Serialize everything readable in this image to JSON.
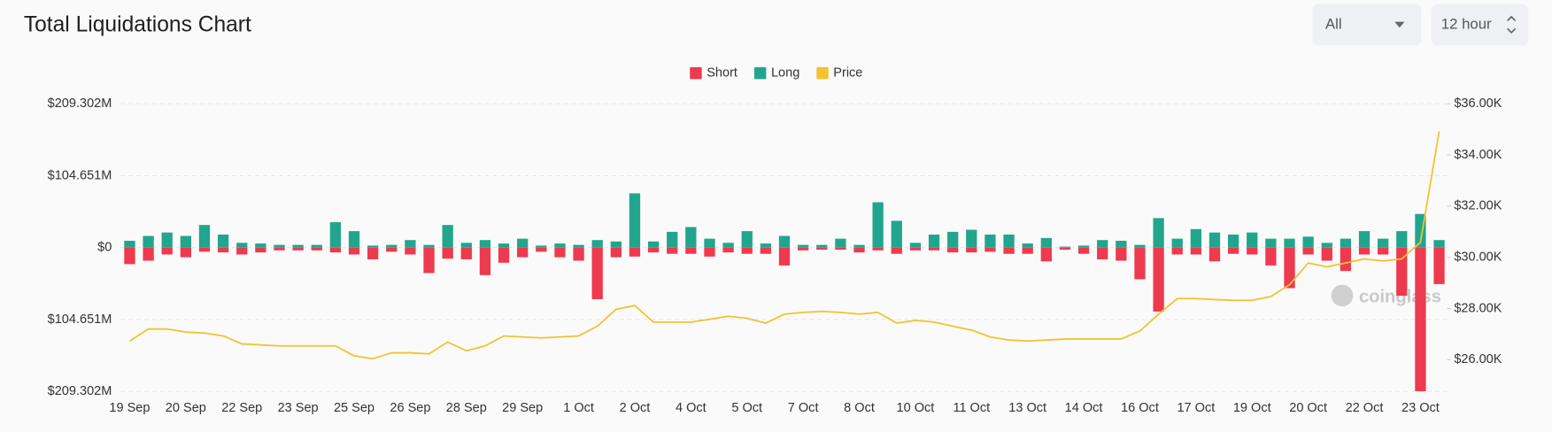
{
  "chart_data": {
    "type": "bar",
    "title": "Total Liquidations Chart",
    "controls": {
      "range": "All",
      "interval": "12 hour"
    },
    "watermark": "coinglass",
    "categories": [
      "19 Sep",
      null,
      null,
      "20 Sep",
      null,
      null,
      "22 Sep",
      null,
      null,
      "23 Sep",
      null,
      null,
      "25 Sep",
      null,
      null,
      "26 Sep",
      null,
      null,
      "28 Sep",
      null,
      null,
      "29 Sep",
      null,
      null,
      "1 Oct",
      null,
      null,
      "2 Oct",
      null,
      null,
      "4 Oct",
      null,
      null,
      "5 Oct",
      null,
      null,
      "7 Oct",
      null,
      null,
      "8 Oct",
      null,
      null,
      "10 Oct",
      null,
      null,
      "11 Oct",
      null,
      null,
      "13 Oct",
      null,
      null,
      "14 Oct",
      null,
      null,
      "16 Oct",
      null,
      null,
      "17 Oct",
      null,
      null,
      "19 Oct",
      null,
      null,
      "20 Oct",
      null,
      null,
      "22 Oct",
      null,
      null,
      "23 Oct",
      null
    ],
    "series": [
      {
        "name": "Short",
        "color": "#ee3a4e",
        "type": "bar",
        "values": [
          -24,
          -19,
          -10,
          -14,
          -6,
          -7,
          -10,
          -7,
          -4,
          -4,
          -4,
          -7,
          -10,
          -17,
          -6,
          -10,
          -37,
          -16,
          -17,
          -40,
          -22,
          -14,
          -6,
          -14,
          -19,
          -75,
          -14,
          -13,
          -7,
          -9,
          -9,
          -13,
          -7,
          -9,
          -9,
          -26,
          -4,
          -3,
          -3,
          -7,
          -4,
          -9,
          -4,
          -4,
          -7,
          -7,
          -6,
          -9,
          -9,
          -20,
          -3,
          -9,
          -17,
          -19,
          -46,
          -93,
          -10,
          -10,
          -20,
          -9,
          -10,
          -26,
          -59,
          -10,
          -19,
          -34,
          -10,
          -10,
          -70,
          -209,
          -53
        ]
      },
      {
        "name": "Long",
        "color": "#21a68d",
        "type": "bar",
        "values": [
          10,
          17,
          22,
          17,
          33,
          19,
          7,
          6,
          4,
          4,
          4,
          37,
          24,
          3,
          4,
          11,
          4,
          33,
          7,
          11,
          6,
          13,
          3,
          6,
          4,
          11,
          9,
          79,
          9,
          23,
          30,
          13,
          7,
          24,
          6,
          17,
          4,
          4,
          13,
          4,
          66,
          39,
          7,
          19,
          23,
          26,
          19,
          19,
          6,
          14,
          1.5,
          3,
          11,
          10,
          4,
          43,
          13,
          27,
          22,
          19,
          22,
          13,
          13,
          16,
          7,
          13,
          24,
          13,
          24,
          49,
          11
        ]
      },
      {
        "name": "Price",
        "color": "#f2c230",
        "type": "line",
        "axis": "y2",
        "values": [
          26730,
          27200,
          27200,
          27080,
          27040,
          26930,
          26620,
          26580,
          26540,
          26540,
          26540,
          26540,
          26150,
          26040,
          26270,
          26270,
          26230,
          26690,
          26350,
          26540,
          26930,
          26890,
          26850,
          26890,
          26930,
          27310,
          27970,
          28120,
          27470,
          27470,
          27470,
          27580,
          27700,
          27620,
          27430,
          27780,
          27850,
          27890,
          27850,
          27780,
          27850,
          27430,
          27540,
          27470,
          27310,
          27160,
          26890,
          26770,
          26730,
          26770,
          26810,
          26810,
          26810,
          26810,
          27120,
          27780,
          28390,
          28390,
          28350,
          28320,
          28320,
          28470,
          28930,
          29780,
          29630,
          29780,
          29940,
          29860,
          29940,
          30590,
          34920
        ]
      }
    ],
    "ylim": [
      -209.302,
      209.302
    ],
    "yticks": [
      {
        "value": -209.302,
        "label": "$209.302M"
      },
      {
        "value": -104.651,
        "label": "$104.651M"
      },
      {
        "value": 0,
        "label": "$0"
      },
      {
        "value": 104.651,
        "label": "$104.651M"
      },
      {
        "value": 209.302,
        "label": "$209.302M"
      }
    ],
    "y2lim": [
      24760,
      36000
    ],
    "y2ticks": [
      {
        "value": 26000,
        "label": "$26.00K"
      },
      {
        "value": 28000,
        "label": "$28.00K"
      },
      {
        "value": 30000,
        "label": "$30.00K"
      },
      {
        "value": 32000,
        "label": "$32.00K"
      },
      {
        "value": 34000,
        "label": "$34.00K"
      },
      {
        "value": 36000,
        "label": "$36.00K"
      }
    ],
    "grid": true,
    "legend": "top"
  }
}
